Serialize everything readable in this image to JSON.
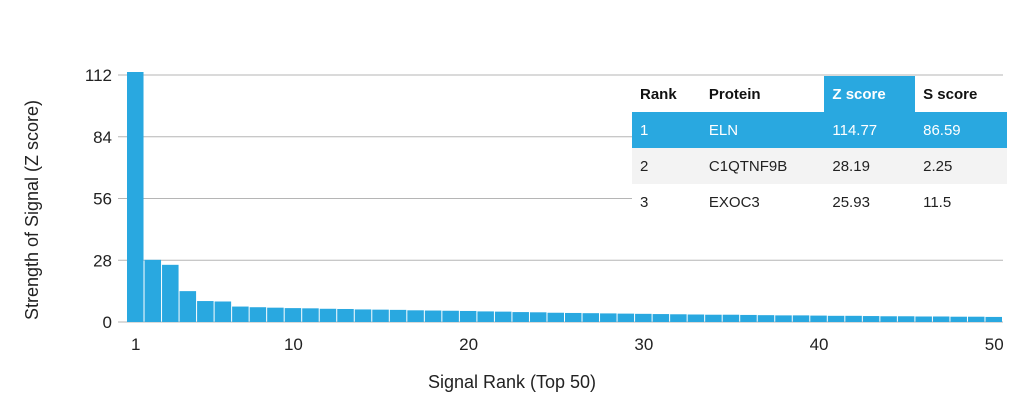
{
  "chart_data": {
    "type": "bar",
    "xlabel": "Signal Rank (Top 50)",
    "ylabel": "Strength of Signal (Z score)",
    "ylim": [
      0,
      112
    ],
    "yticks": [
      0,
      28,
      56,
      84,
      112
    ],
    "xticks": [
      1,
      10,
      20,
      30,
      40,
      50
    ],
    "grid": true,
    "x": [
      1,
      2,
      3,
      4,
      5,
      6,
      7,
      8,
      9,
      10,
      11,
      12,
      13,
      14,
      15,
      16,
      17,
      18,
      19,
      20,
      21,
      22,
      23,
      24,
      25,
      26,
      27,
      28,
      29,
      30,
      31,
      32,
      33,
      34,
      35,
      36,
      37,
      38,
      39,
      40,
      41,
      42,
      43,
      44,
      45,
      46,
      47,
      48,
      49,
      50
    ],
    "values": [
      114.77,
      28.19,
      25.93,
      14.0,
      9.5,
      9.3,
      7.0,
      6.7,
      6.5,
      6.3,
      6.2,
      6.0,
      5.9,
      5.7,
      5.6,
      5.5,
      5.3,
      5.2,
      5.1,
      5.0,
      4.8,
      4.7,
      4.5,
      4.4,
      4.2,
      4.1,
      4.0,
      3.9,
      3.8,
      3.7,
      3.6,
      3.5,
      3.4,
      3.3,
      3.3,
      3.2,
      3.1,
      3.0,
      3.0,
      2.9,
      2.8,
      2.8,
      2.7,
      2.6,
      2.6,
      2.5,
      2.5,
      2.4,
      2.4,
      2.3
    ]
  },
  "table": {
    "headers": [
      "Rank",
      "Protein",
      "Z score",
      "S score"
    ],
    "rows": [
      [
        "1",
        "ELN",
        "114.77",
        "86.59"
      ],
      [
        "2",
        "C1QTNF9B",
        "28.19",
        "2.25"
      ],
      [
        "3",
        "EXOC3",
        "25.93",
        "11.5"
      ]
    ]
  },
  "colors": {
    "bar": "#29a8e0",
    "highlight": "#29a8e0",
    "grid": "#b5b5b5"
  }
}
